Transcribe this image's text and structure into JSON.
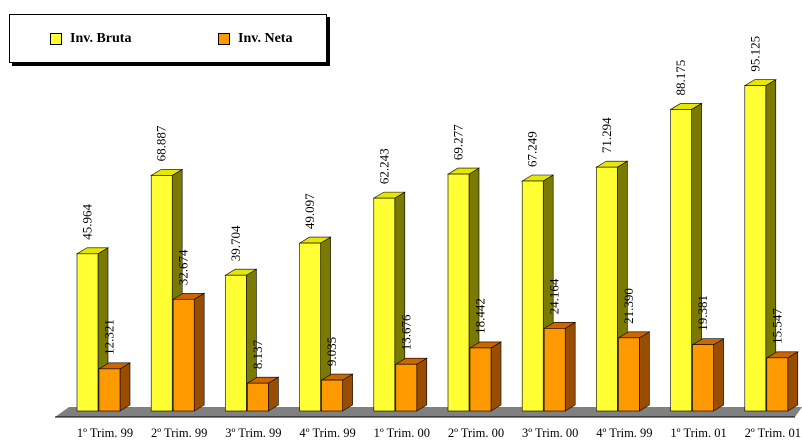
{
  "chart_data": {
    "type": "bar",
    "categories": [
      "1º Trim. 99",
      "2º Trim. 99",
      "3º Trim. 99",
      "4º Trim. 99",
      "1º Trim. 00",
      "2º Trim. 00",
      "3º Trim. 00",
      "4º Trim. 99",
      "1º Trim. 01",
      "2º Trim. 01"
    ],
    "series": [
      {
        "name": "Inv. Bruta",
        "values": [
          45964,
          68887,
          39704,
          49097,
          62243,
          69277,
          67249,
          71294,
          88175,
          95125
        ],
        "labels": [
          "45.964",
          "68.887",
          "39.704",
          "49.097",
          "62.243",
          "69.277",
          "67.249",
          "71.294",
          "88.175",
          "95.125"
        ]
      },
      {
        "name": "Inv. Neta",
        "values": [
          12321,
          32674,
          8137,
          9035,
          13676,
          18442,
          24164,
          21390,
          19381,
          15547
        ],
        "labels": [
          "12.321",
          "32.674",
          "8.137",
          "9.035",
          "13.676",
          "18.442",
          "24.164",
          "21.390",
          "19.381",
          "15.547"
        ]
      }
    ],
    "legend_position": "top-left",
    "colors": {
      "Inv. Bruta": "#ffff33",
      "Inv. Neta": "#ff9900"
    }
  }
}
